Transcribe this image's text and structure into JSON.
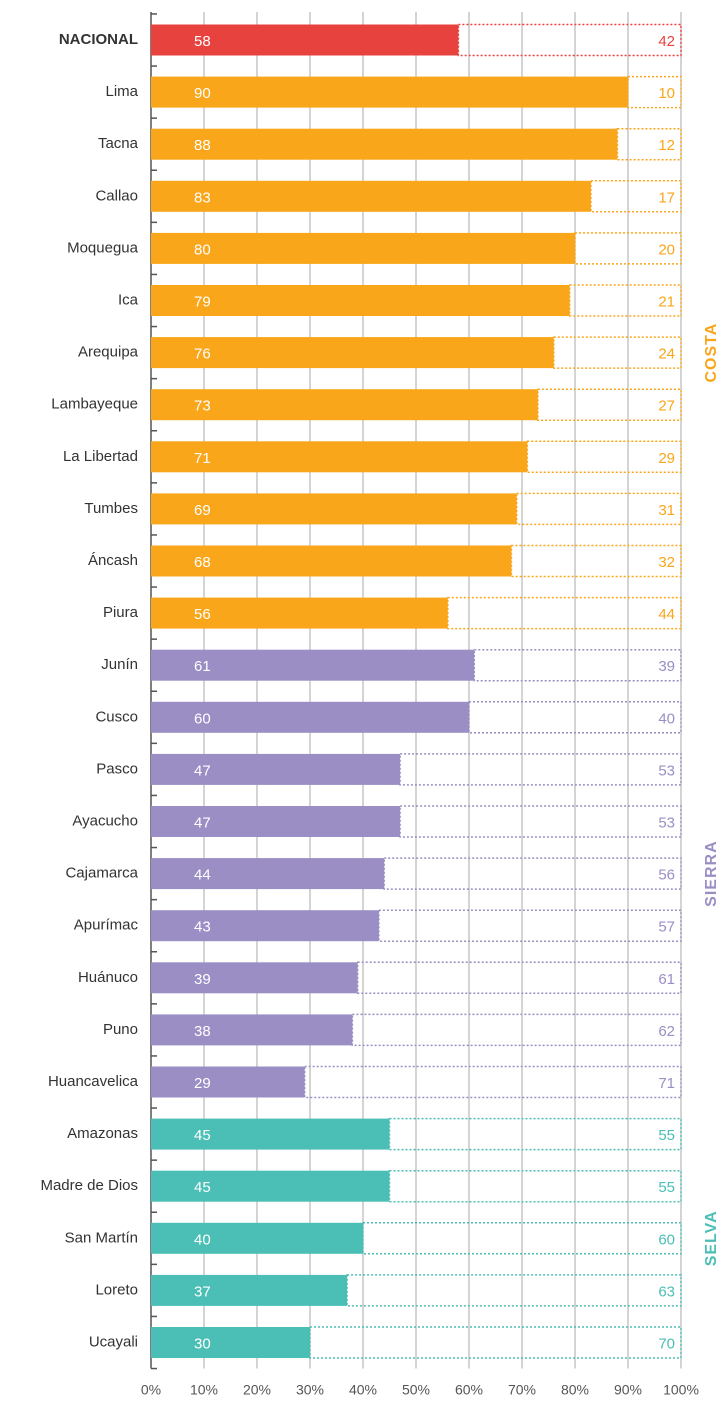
{
  "chart_data": {
    "type": "bar",
    "xlim": [
      0,
      100
    ],
    "xticks": [
      {
        "value": 0,
        "label": "0%"
      },
      {
        "value": 10,
        "label": "10%"
      },
      {
        "value": 20,
        "label": "20%"
      },
      {
        "value": 30,
        "label": "30%"
      },
      {
        "value": 40,
        "label": "40%"
      },
      {
        "value": 50,
        "label": "50%"
      },
      {
        "value": 60,
        "label": "60%"
      },
      {
        "value": 70,
        "label": "70%"
      },
      {
        "value": 80,
        "label": "80%"
      },
      {
        "value": 90,
        "label": "90%"
      },
      {
        "value": 100,
        "label": "100%"
      }
    ],
    "grid": true,
    "national": {
      "name": "NACIONAL",
      "color": "#e8423f",
      "value": 58,
      "remainder": 42
    },
    "groups": [
      {
        "label": "COSTA",
        "color": "#f9a61a",
        "categories": [
          "Lima",
          "Tacna",
          "Callao",
          "Moquegua",
          "Ica",
          "Arequipa",
          "Lambayeque",
          "La Libertad",
          "Tumbes",
          "Áncash",
          "Piura"
        ],
        "values": [
          90,
          88,
          83,
          80,
          79,
          76,
          73,
          71,
          69,
          68,
          56
        ],
        "remainders": [
          10,
          12,
          17,
          20,
          21,
          24,
          27,
          29,
          31,
          32,
          44
        ]
      },
      {
        "label": "SIERRA",
        "color": "#9b8ec4",
        "categories": [
          "Junín",
          "Cusco",
          "Pasco",
          "Ayacucho",
          "Cajamarca",
          "Apurímac",
          "Huánuco",
          "Puno",
          "Huancavelica"
        ],
        "values": [
          61,
          60,
          47,
          47,
          44,
          43,
          39,
          38,
          29
        ],
        "remainders": [
          39,
          40,
          53,
          53,
          56,
          57,
          61,
          62,
          71
        ]
      },
      {
        "label": "SELVA",
        "color": "#4bbfb5",
        "categories": [
          "Amazonas",
          "Madre de Dios",
          "San Martín",
          "Loreto",
          "Ucayali"
        ],
        "values": [
          45,
          45,
          40,
          37,
          30
        ],
        "remainders": [
          55,
          55,
          60,
          63,
          70
        ]
      }
    ]
  }
}
